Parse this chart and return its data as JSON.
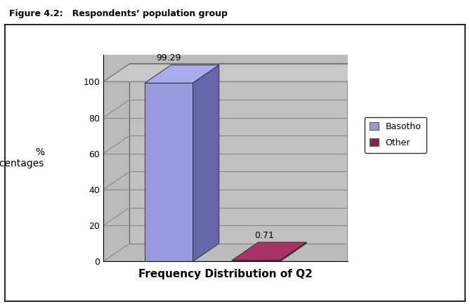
{
  "title": "Figure 4.2:   Respondents’ population group",
  "xlabel": "Frequency Distribution of Q2",
  "ylabel": "%\nPercentages",
  "categories": [
    "Basotho",
    "Other"
  ],
  "values": [
    99.29,
    0.71
  ],
  "bar_colors_front": [
    "#9999dd",
    "#8b2252"
  ],
  "bar_colors_side": [
    "#6666aa",
    "#661133"
  ],
  "bar_colors_top": [
    "#aaaaee",
    "#aa3366"
  ],
  "ylim": [
    0,
    110
  ],
  "yticks": [
    0,
    20,
    40,
    60,
    80,
    100
  ],
  "bar_labels": [
    "99.29",
    "0.71"
  ],
  "legend_labels": [
    "Basotho",
    "Other"
  ],
  "legend_colors": [
    "#9999dd",
    "#8b2252"
  ],
  "wall_color": "#bbbbbb",
  "wall_side_color": "#aaaaaa",
  "wall_top_color": "#cccccc",
  "plot_bg_color": "#bbbbbb",
  "figure_bg_color": "#ffffff",
  "grid_color": "#888888",
  "border_color": "#000000"
}
